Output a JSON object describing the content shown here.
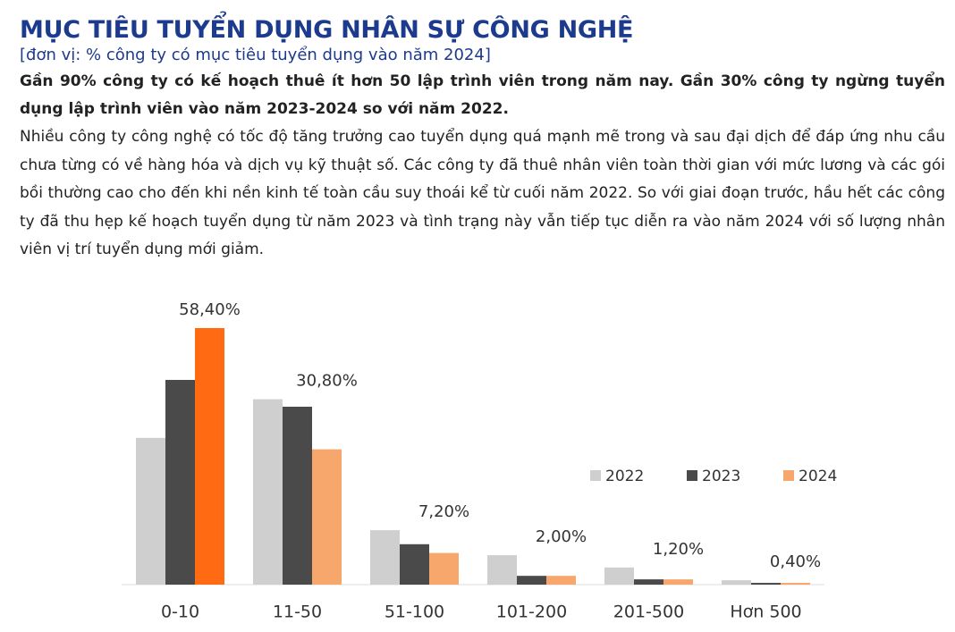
{
  "chart_data": {
    "type": "bar",
    "title": "MỤC TIÊU TUYỂN DỤNG NHÂN SỰ CÔNG NGHỆ",
    "subtitle": "[đơn vị: % công ty có mục tiêu tuyển dụng vào năm 2024]",
    "annotations": [
      "Gần 90% công ty có kế hoạch thuê ít hơn 50 lập trình viên trong năm nay. Gần 30% công ty ngừng tuyển dụng lập trình viên vào năm 2023-2024 so với năm 2022.",
      "Nhiều công ty công nghệ có tốc độ tăng trưởng cao tuyển dụng quá mạnh mẽ trong và sau đại dịch để đáp ứng nhu cầu chưa từng có về hàng hóa và dịch vụ kỹ thuật số. Các công ty đã thuê nhân viên toàn thời gian với mức lương và các gói bồi thường cao cho đến khi nền kinh tế toàn cầu suy thoái kể từ cuối năm 2022. So với giai đoạn trước, hầu hết các công ty đã thu hẹp kế hoạch tuyển dụng từ năm 2023 và tình trạng này vẫn tiếp tục diễn ra vào năm 2024 với số lượng nhân viên vị trí tuyển dụng mới giảm."
    ],
    "categories": [
      "0-10",
      "11-50",
      "51-100",
      "101-200",
      "201-500",
      "Hơn 500"
    ],
    "series": [
      {
        "name": "2022",
        "color": "#cfcfcf",
        "values": [
          33.4,
          42.2,
          12.4,
          6.7,
          3.9,
          1.0
        ]
      },
      {
        "name": "2023",
        "color": "#4a4a4a",
        "values": [
          46.6,
          40.5,
          9.2,
          2.0,
          1.2,
          0.4
        ]
      },
      {
        "name": "2024",
        "color": "#f7a66c",
        "values": [
          58.4,
          30.8,
          7.2,
          2.0,
          1.2,
          0.4
        ],
        "value_labels": [
          "58,40%",
          "30,80%",
          "7,20%",
          "2,00%",
          "1,20%",
          "0,40%"
        ],
        "bar_colors": [
          "#ff6a13",
          "#f7a66c",
          "#f7a66c",
          "#f7a66c",
          "#f7a66c",
          "#f7a66c"
        ]
      }
    ],
    "legend": "right"
  }
}
